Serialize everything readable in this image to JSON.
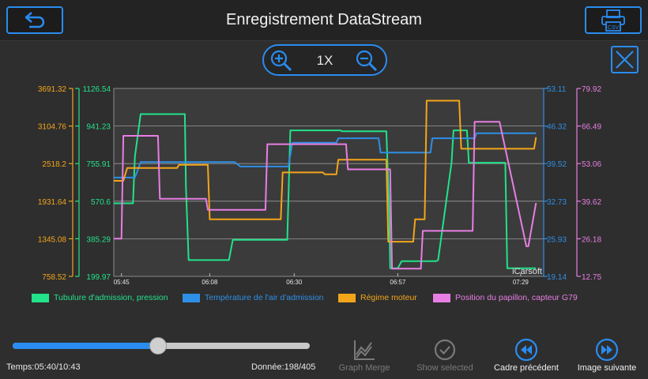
{
  "header": {
    "title": "Enregistrement DataStream"
  },
  "zoom": {
    "level": "1X"
  },
  "icons": {
    "back": "back-arrow-icon",
    "csv": "printer-csv-icon",
    "zoom_in": "zoom-in-icon",
    "zoom_out": "zoom-out-icon",
    "close": "close-icon",
    "graph_merge": "graph-merge-icon",
    "show_selected": "check-circle-icon",
    "prev": "rewind-icon",
    "next": "fast-forward-icon"
  },
  "csv_label": "CSV",
  "colors": {
    "accent": "#2a8cf0",
    "green": "#22e28a",
    "blue": "#2e8fe6",
    "orange": "#f3a51a",
    "pink": "#e87ee3"
  },
  "chart_data": {
    "type": "line",
    "watermark": "iCarsoft",
    "x_ticks": [
      "05:45",
      "06:08",
      "06:30",
      "06:57",
      "07:29"
    ],
    "x_ticks_at": [
      0,
      23,
      45,
      72,
      104
    ],
    "x_range": [
      -2,
      110
    ],
    "axes": [
      {
        "id": "orange",
        "side": "left",
        "ticks": [
          "3691.32",
          "3104.76",
          "2518.2",
          "1931.64",
          "1345.08",
          "758.52"
        ],
        "range": [
          758.52,
          3691.32
        ],
        "color": "#f3a51a"
      },
      {
        "id": "green",
        "side": "left",
        "ticks": [
          "1126.54",
          "941.23",
          "755.91",
          "570.6",
          "385.29",
          "199.97"
        ],
        "range": [
          199.97,
          1126.54
        ],
        "color": "#22e28a"
      },
      {
        "id": "blue",
        "side": "right",
        "ticks": [
          "53.11",
          "46.32",
          "39.52",
          "32.73",
          "25.93",
          "19.14"
        ],
        "range": [
          19.14,
          53.11
        ],
        "color": "#2e8fe6"
      },
      {
        "id": "pink",
        "side": "right",
        "ticks": [
          "79.92",
          "66.49",
          "53.06",
          "39.62",
          "26.18",
          "12.75"
        ],
        "range": [
          12.75,
          79.92
        ],
        "color": "#e87ee3"
      }
    ],
    "series": [
      {
        "name": "Tubulure d'admission, pression",
        "axis": "green",
        "color": "#22e28a",
        "x": [
          -2,
          3,
          3.5,
          5,
          5.5,
          16,
          16.5,
          16.8,
          17.5,
          27.5,
          28,
          29,
          29.5,
          43,
          43.2,
          44,
          44.5,
          57,
          57.5,
          63,
          63.5,
          64,
          64.5,
          69,
          69.8,
          70,
          70.3,
          72,
          73,
          74,
          74.5,
          82,
          82.5,
          86,
          86.5,
          90,
          90.5,
          100,
          100.5,
          108
        ],
        "y": [
          560,
          560,
          790,
          1000,
          1000,
          1000,
          1000,
          640,
          280,
          280,
          280,
          380,
          380,
          380,
          380,
          920,
          920,
          920,
          915,
          915,
          915,
          915,
          915,
          915,
          510,
          240,
          240,
          240,
          275,
          275,
          275,
          275,
          280,
          760,
          920,
          920,
          760,
          760,
          240,
          240
        ]
      },
      {
        "name": "Température de l'air d'admission",
        "axis": "blue",
        "color": "#2e8fe6",
        "x": [
          -2,
          3,
          3.5,
          5,
          5.5,
          29,
          29.5,
          31,
          31.5,
          43,
          43.5,
          44.5,
          45,
          56,
          56.5,
          67,
          67.5,
          75,
          75.5,
          80.5,
          81,
          88,
          88.5,
          92,
          92.5,
          108
        ],
        "y": [
          37,
          37,
          37,
          39.8,
          39.8,
          39.8,
          39.8,
          39,
          39,
          39,
          39,
          43.3,
          43.3,
          43.3,
          44.1,
          44.1,
          41.5,
          41.5,
          41.5,
          41.5,
          44.1,
          44.1,
          44.1,
          44.1,
          45,
          45
        ]
      },
      {
        "name": "Régime moteur",
        "axis": "orange",
        "color": "#f3a51a",
        "x": [
          -2,
          0,
          0.5,
          1.5,
          2,
          14.5,
          15,
          22.5,
          23,
          28.5,
          29,
          41.5,
          42,
          44,
          44.5,
          52.5,
          53,
          56,
          56.5,
          64,
          64.5,
          69,
          69.5,
          76,
          76.5,
          79,
          79.5,
          88,
          88.5,
          93,
          93.5,
          106.5,
          107.5,
          108
        ],
        "y": [
          2250,
          2250,
          2250,
          2450,
          2450,
          2450,
          2500,
          2500,
          1650,
          1650,
          1650,
          1650,
          2380,
          2380,
          2380,
          2380,
          2350,
          2350,
          2580,
          2580,
          2580,
          2580,
          1300,
          1300,
          1650,
          1650,
          3500,
          3500,
          2750,
          2750,
          2750,
          2750,
          2750,
          2930
        ]
      },
      {
        "name": "Position du papillon, capteur G79",
        "axis": "pink",
        "color": "#e87ee3",
        "x": [
          -2,
          0,
          0.5,
          9.5,
          10,
          20,
          20.5,
          22,
          22.5,
          27,
          27.5,
          37.5,
          38,
          47,
          47.5,
          58.5,
          59,
          62,
          62.5,
          70,
          70.5,
          78,
          78.5,
          82,
          82.5,
          91,
          91.5,
          92,
          92.5,
          98,
          98.5,
          105.5,
          106,
          108
        ],
        "y": [
          26.2,
          26.2,
          63,
          63,
          40.5,
          40.5,
          40.5,
          40.5,
          36.5,
          36.5,
          36.5,
          36.5,
          60,
          60,
          60,
          60,
          51,
          51,
          51,
          51,
          15.5,
          15.5,
          29,
          29,
          29,
          29,
          29,
          68,
          68,
          68,
          68,
          23.5,
          23.5,
          39
        ]
      }
    ]
  },
  "slider": {
    "progress": 0.49
  },
  "status": {
    "time": "Temps:05:40/10:43",
    "data": "Donnée:198/405"
  },
  "actions": {
    "graph_merge": "Graph Merge",
    "show_selected": "Show selected",
    "prev": "Cadre précédent",
    "next": "Image suivante"
  }
}
